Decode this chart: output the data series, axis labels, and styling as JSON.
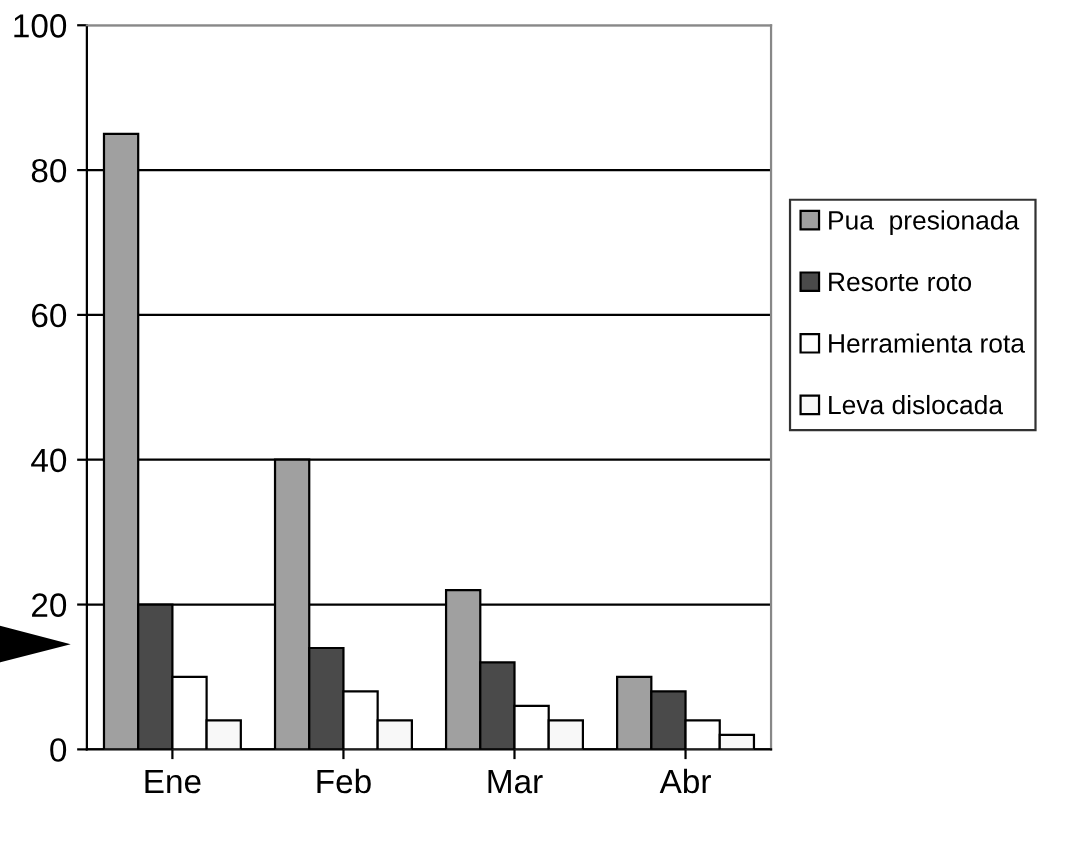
{
  "chart_data": {
    "type": "bar",
    "categories": [
      "Ene",
      "Feb",
      "Mar",
      "Abr"
    ],
    "series": [
      {
        "name": "Pua  presionada",
        "color": "#a0a0a0",
        "values": [
          85,
          40,
          22,
          10
        ]
      },
      {
        "name": "Resorte roto",
        "color": "#4a4a4a",
        "values": [
          20,
          14,
          12,
          8
        ]
      },
      {
        "name": "Herramienta rota",
        "color": "#ffffff",
        "values": [
          10,
          8,
          6,
          4
        ]
      },
      {
        "name": "Leva dislocada",
        "color": "#f8f8f8",
        "values": [
          4,
          4,
          4,
          2
        ]
      }
    ],
    "ylim": [
      0,
      100
    ],
    "yticks": [
      0,
      20,
      40,
      60,
      80,
      100
    ],
    "grid": "y",
    "legend": "right"
  }
}
